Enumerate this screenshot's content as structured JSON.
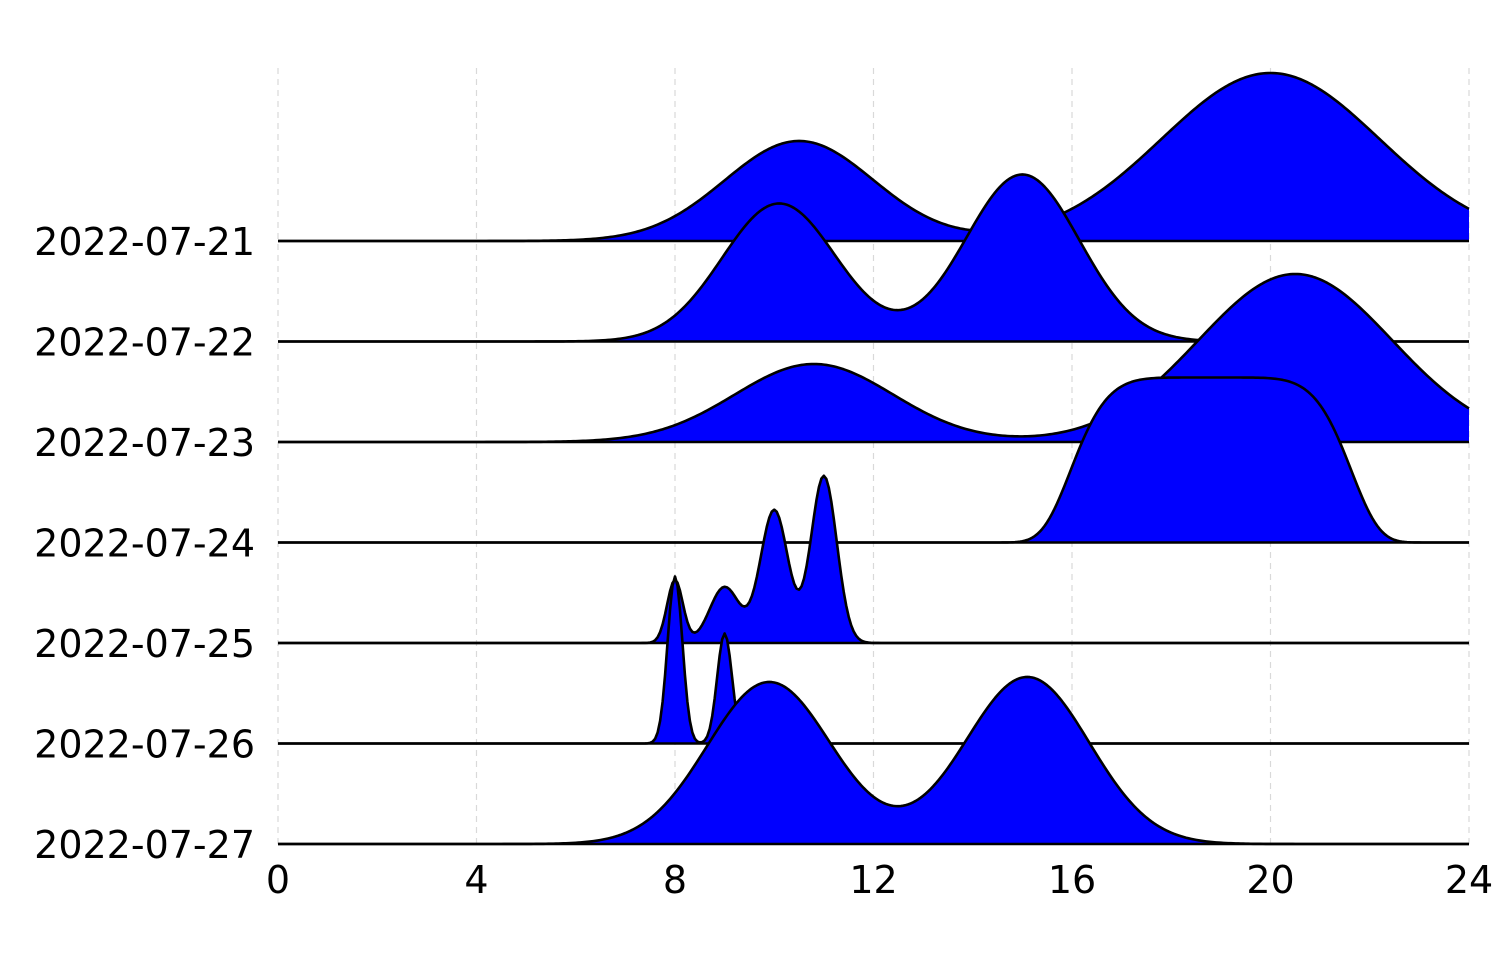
{
  "chart_data": {
    "type": "ridgeline",
    "title": "",
    "xlabel": "",
    "xlim": [
      0,
      24
    ],
    "xticks": [
      "0",
      "4",
      "8",
      "12",
      "16",
      "20",
      "24"
    ],
    "fill_color": "#0000ff",
    "line_color": "#000000",
    "grid": "vertical dashed",
    "series": [
      {
        "date": "2022-07-21",
        "components": [
          {
            "mu": 10.5,
            "sigma": 1.5,
            "amp": 1.0
          },
          {
            "mu": 20.0,
            "sigma": 2.2,
            "amp": 1.68
          }
        ]
      },
      {
        "date": "2022-07-22",
        "components": [
          {
            "mu": 10.1,
            "sigma": 1.15,
            "amp": 1.38
          },
          {
            "mu": 15.0,
            "sigma": 1.15,
            "amp": 1.67
          }
        ]
      },
      {
        "date": "2022-07-23",
        "components": [
          {
            "mu": 10.8,
            "sigma": 1.6,
            "amp": 0.78
          },
          {
            "mu": 20.5,
            "sigma": 1.95,
            "amp": 1.68
          }
        ]
      },
      {
        "date": "2022-07-24",
        "components": [
          {
            "mu": 18.8,
            "sigma": 2.6,
            "amp": 1.65,
            "p": 6
          }
        ]
      },
      {
        "date": "2022-07-25",
        "components": [
          {
            "mu": 8.0,
            "sigma": 0.16,
            "amp": 0.63
          },
          {
            "mu": 9.0,
            "sigma": 0.3,
            "amp": 0.56
          },
          {
            "mu": 10.0,
            "sigma": 0.28,
            "amp": 1.33
          },
          {
            "mu": 11.0,
            "sigma": 0.26,
            "amp": 1.67
          }
        ]
      },
      {
        "date": "2022-07-26",
        "components": [
          {
            "mu": 8.0,
            "sigma": 0.15,
            "amp": 1.67
          },
          {
            "mu": 9.0,
            "sigma": 0.15,
            "amp": 1.1
          }
        ]
      },
      {
        "date": "2022-07-27",
        "components": [
          {
            "mu": 9.9,
            "sigma": 1.25,
            "amp": 1.62
          },
          {
            "mu": 15.1,
            "sigma": 1.25,
            "amp": 1.67
          }
        ]
      }
    ]
  }
}
